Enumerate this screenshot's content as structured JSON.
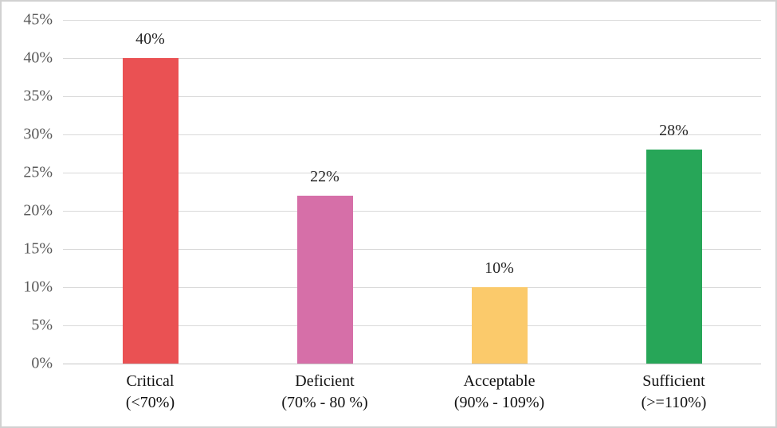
{
  "chart_data": {
    "type": "bar",
    "title": "",
    "xlabel": "",
    "ylabel": "",
    "categories": [
      {
        "name": "Critical",
        "range": "(<70%)"
      },
      {
        "name": "Deficient",
        "range": "(70% - 80 %)"
      },
      {
        "name": "Acceptable",
        "range": "(90% - 109%)"
      },
      {
        "name": "Sufficient",
        "range": "(>=110%)"
      }
    ],
    "values": [
      40,
      22,
      10,
      28
    ],
    "data_labels": [
      "40%",
      "22%",
      "10%",
      "28%"
    ],
    "bar_colors": [
      "#EA5153",
      "#D66FA8",
      "#FBCA6B",
      "#27A658"
    ],
    "ylim": [
      0,
      45
    ],
    "ytick_step": 5,
    "ytick_labels": [
      "0%",
      "5%",
      "10%",
      "15%",
      "20%",
      "25%",
      "30%",
      "35%",
      "40%",
      "45%"
    ],
    "grid": true,
    "legend": "none",
    "colors": {
      "gridline": "#d9d9d9",
      "axis_line": "#c6c6c6",
      "ytick_text": "#595959",
      "data_label_text": "#262626",
      "category_text": "#111111",
      "frame_border": "#d1d1d1",
      "background": "#ffffff"
    }
  }
}
